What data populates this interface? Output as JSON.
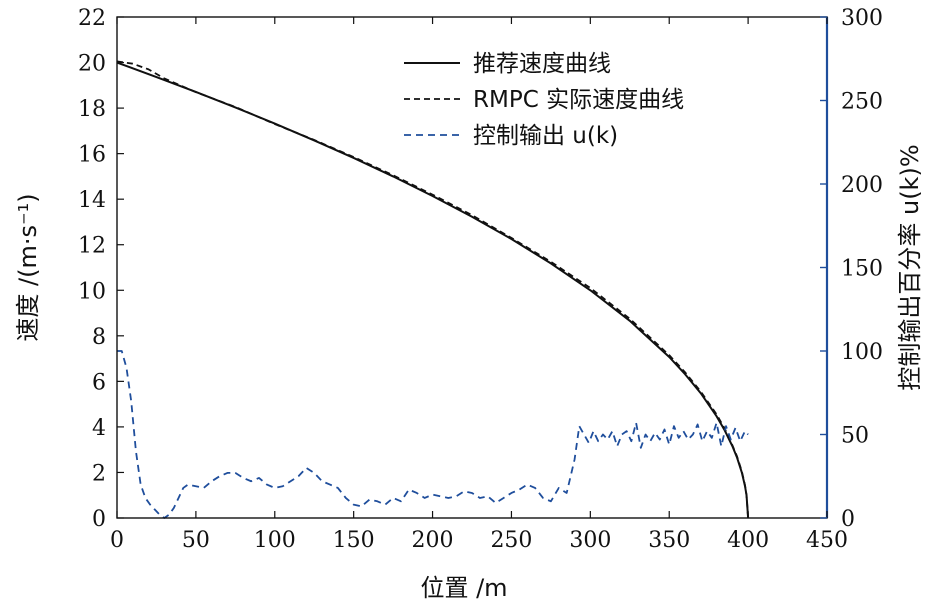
{
  "chart_data": {
    "type": "line",
    "xlabel": "位置 /m",
    "ylabel_left": "速度 /(m·s⁻¹)",
    "ylabel_right": "控制输出百分率 u(k)%",
    "xlim": [
      0,
      450
    ],
    "ylim_left": [
      0,
      22
    ],
    "ylim_right": [
      0,
      300
    ],
    "x_ticks": [
      0,
      50,
      100,
      150,
      200,
      250,
      300,
      350,
      400,
      450
    ],
    "y_left_ticks": [
      0,
      2,
      4,
      6,
      8,
      10,
      12,
      14,
      16,
      18,
      20,
      22
    ],
    "y_right_ticks": [
      0,
      50,
      100,
      150,
      200,
      250,
      300
    ],
    "grid": false,
    "legend_position": "top-right",
    "colors": {
      "recommended": "#111111",
      "actual": "#111111",
      "control": "#1f4e9c",
      "right_axis": "#1f4e9c"
    },
    "series": [
      {
        "name": "推荐速度曲线",
        "axis": "left",
        "style": "solid",
        "x": [
          0,
          25,
          50,
          75,
          100,
          125,
          150,
          175,
          200,
          225,
          250,
          275,
          300,
          325,
          350,
          360,
          370,
          380,
          385,
          390,
          393,
          396,
          398,
          399,
          400
        ],
        "y": [
          20.0,
          19.36,
          18.71,
          18.03,
          17.32,
          16.58,
          15.81,
          15.0,
          14.14,
          13.23,
          12.25,
          11.18,
          10.0,
          8.66,
          7.07,
          6.32,
          5.48,
          4.47,
          3.87,
          3.16,
          2.65,
          2.0,
          1.41,
          1.0,
          0.0
        ]
      },
      {
        "name": "RMPC 实际速度曲线",
        "axis": "left",
        "style": "dashed",
        "x": [
          0,
          10,
          20,
          30,
          50,
          75,
          100,
          125,
          150,
          175,
          200,
          225,
          250,
          275,
          300,
          325,
          350,
          360,
          370,
          380,
          385,
          390,
          393,
          396,
          398,
          399,
          400
        ],
        "y": [
          20.05,
          19.95,
          19.7,
          19.3,
          18.7,
          18.05,
          17.3,
          16.6,
          15.85,
          15.05,
          14.2,
          13.3,
          12.3,
          11.25,
          10.1,
          8.75,
          7.15,
          6.4,
          5.55,
          4.55,
          3.95,
          3.2,
          2.7,
          2.05,
          1.45,
          1.0,
          0.0
        ]
      },
      {
        "name": "控制输出 u(k)",
        "axis": "right",
        "style": "dashed",
        "x": [
          0,
          3,
          6,
          9,
          12,
          15,
          18,
          21,
          24,
          27,
          30,
          33,
          36,
          39,
          42,
          45,
          50,
          55,
          60,
          65,
          70,
          75,
          80,
          85,
          90,
          95,
          100,
          105,
          110,
          115,
          120,
          125,
          130,
          135,
          140,
          145,
          150,
          155,
          160,
          165,
          170,
          175,
          180,
          185,
          190,
          195,
          200,
          205,
          210,
          215,
          220,
          225,
          230,
          235,
          240,
          245,
          250,
          255,
          260,
          265,
          270,
          275,
          280,
          285,
          290,
          293,
          296,
          299,
          302,
          305,
          308,
          311,
          314,
          317,
          320,
          323,
          326,
          329,
          332,
          335,
          338,
          341,
          344,
          347,
          350,
          353,
          356,
          359,
          362,
          365,
          368,
          371,
          374,
          377,
          380,
          383,
          386,
          389,
          392,
          395,
          398,
          400
        ],
        "y": [
          100,
          100,
          90,
          70,
          40,
          20,
          12,
          8,
          5,
          2,
          0,
          2,
          6,
          12,
          18,
          20,
          19,
          18,
          22,
          25,
          27,
          27,
          24,
          22,
          24,
          20,
          18,
          19,
          22,
          25,
          30,
          27,
          22,
          20,
          18,
          12,
          8,
          7,
          11,
          10,
          8,
          12,
          10,
          17,
          15,
          12,
          14,
          13,
          12,
          13,
          16,
          15,
          12,
          13,
          9,
          12,
          15,
          17,
          20,
          18,
          12,
          10,
          18,
          15,
          35,
          55,
          50,
          45,
          52,
          46,
          50,
          47,
          52,
          43,
          50,
          52,
          46,
          57,
          42,
          50,
          46,
          51,
          47,
          53,
          44,
          55,
          48,
          52,
          47,
          50,
          56,
          46,
          52,
          48,
          57,
          43,
          55,
          47,
          54,
          46,
          52,
          50
        ]
      }
    ]
  }
}
